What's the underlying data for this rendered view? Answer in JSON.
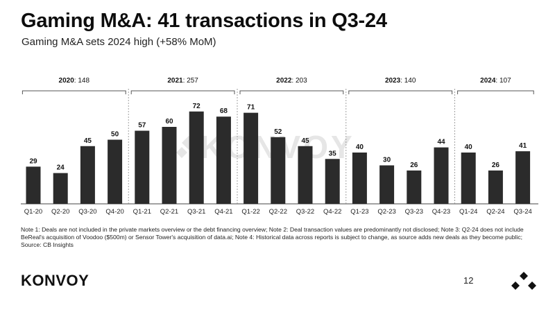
{
  "header": {
    "title": "Gaming M&A: 41 transactions in Q3-24",
    "subtitle": "Gaming M&A sets 2024 high (+58% MoM)"
  },
  "chart_data": {
    "type": "bar",
    "categories": [
      "Q1-20",
      "Q2-20",
      "Q3-20",
      "Q4-20",
      "Q1-21",
      "Q2-21",
      "Q3-21",
      "Q4-21",
      "Q1-22",
      "Q2-22",
      "Q3-22",
      "Q4-22",
      "Q1-23",
      "Q2-23",
      "Q3-23",
      "Q4-23",
      "Q1-24",
      "Q2-24",
      "Q3-24"
    ],
    "values": [
      29,
      24,
      45,
      50,
      57,
      60,
      72,
      68,
      71,
      52,
      45,
      35,
      40,
      30,
      26,
      44,
      40,
      26,
      41
    ],
    "year_groups": [
      {
        "year": "2020",
        "total": "148",
        "start": 0,
        "count": 4
      },
      {
        "year": "2021",
        "total": "257",
        "start": 4,
        "count": 4
      },
      {
        "year": "2022",
        "total": "203",
        "start": 8,
        "count": 4
      },
      {
        "year": "2023",
        "total": "140",
        "start": 12,
        "count": 4
      },
      {
        "year": "2024",
        "total": "107",
        "start": 16,
        "count": 3
      }
    ],
    "ylim": [
      0,
      80
    ],
    "bar_color": "#2b2b2b",
    "grid": false,
    "watermark": "KONVOY"
  },
  "notes": "Note 1: Deals are not included in the private markets overview or the debt financing overview; Note 2: Deal transaction values are predominantly not disclosed; Note 3: Q2-24 does not include BeReal's acquisition of Voodoo ($500m) or Sensor Tower's acquisition of data.ai; Note 4: Historical data across reports is subject to change, as source adds new deals as they become public; Source: CB Insights",
  "footer": {
    "brand": "KONVOY",
    "page_number": "12",
    "logo_icon": "konvoy-tri-dot-icon"
  }
}
